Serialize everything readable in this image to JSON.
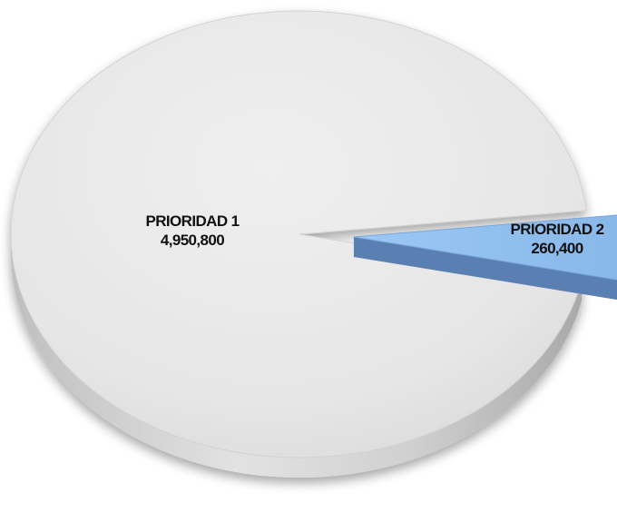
{
  "chart_data": {
    "type": "pie",
    "style": "3d-exploded",
    "title": "",
    "slices": [
      {
        "label": "PRIORIDAD 1",
        "value": 4950800,
        "value_label": "4,950,800",
        "color": "#e8e8e8"
      },
      {
        "label": "PRIORIDAD 2",
        "value": 260400,
        "value_label": "260,400",
        "color": "#8fbff0"
      }
    ],
    "legend": "none"
  }
}
